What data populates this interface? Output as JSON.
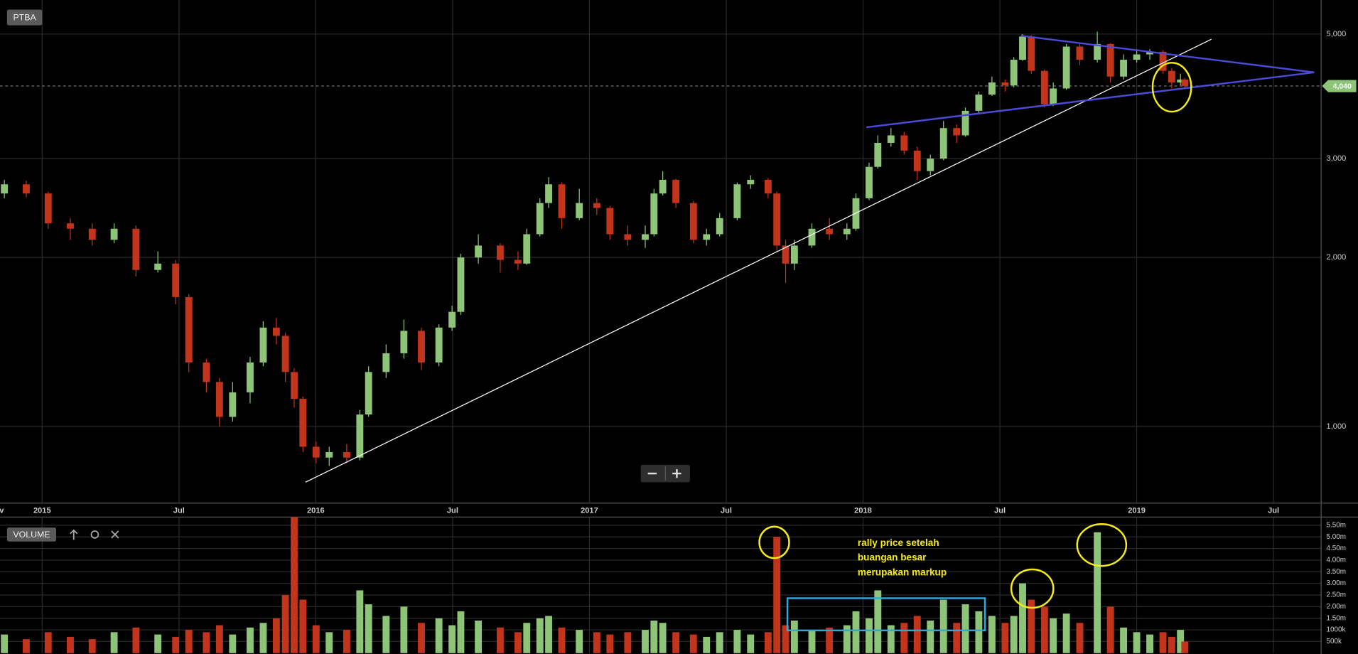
{
  "chart_data": [
    {
      "type": "candlestick",
      "title": "PTBA",
      "x": [
        2014.862,
        2014.942,
        2015.022,
        2015.103,
        2015.183,
        2015.263,
        2015.343,
        2015.423,
        2015.488,
        2015.536,
        2015.6,
        2015.648,
        2015.696,
        2015.76,
        2015.808,
        2015.856,
        2015.889,
        2015.921,
        2015.953,
        2016.001,
        2016.049,
        2016.113,
        2016.161,
        2016.193,
        2016.257,
        2016.322,
        2016.386,
        2016.45,
        2016.498,
        2016.53,
        2016.594,
        2016.674,
        2016.739,
        2016.771,
        2016.819,
        2016.851,
        2016.899,
        2016.963,
        2017.027,
        2017.075,
        2017.14,
        2017.204,
        2017.236,
        2017.268,
        2017.316,
        2017.38,
        2017.428,
        2017.476,
        2017.54,
        2017.589,
        2017.653,
        2017.685,
        2017.717,
        2017.749,
        2017.813,
        2017.877,
        2017.941,
        2017.974,
        2018.022,
        2018.054,
        2018.102,
        2018.15,
        2018.198,
        2018.246,
        2018.294,
        2018.342,
        2018.374,
        2018.423,
        2018.471,
        2018.519,
        2018.551,
        2018.583,
        2018.615,
        2018.663,
        2018.695,
        2018.743,
        2018.792,
        2018.856,
        2018.904,
        2018.952,
        2019.0,
        2019.048,
        2019.096,
        2019.128,
        2019.16,
        2019.176
      ],
      "open": [
        2600,
        2700,
        2600,
        2300,
        2250,
        2150,
        2250,
        1900,
        1950,
        1700,
        1300,
        1200,
        1040,
        1150,
        1300,
        1500,
        1450,
        1250,
        1120,
        920,
        880,
        900,
        880,
        1050,
        1250,
        1350,
        1480,
        1300,
        1500,
        1600,
        2000,
        2100,
        1980,
        1950,
        2200,
        2500,
        2700,
        2350,
        2500,
        2450,
        2200,
        2150,
        2200,
        2600,
        2750,
        2500,
        2150,
        2200,
        2350,
        2700,
        2750,
        2600,
        2100,
        1950,
        2100,
        2250,
        2200,
        2250,
        2550,
        2900,
        3200,
        3300,
        3100,
        2850,
        3000,
        3400,
        3300,
        3650,
        3900,
        4100,
        4050,
        4500,
        4950,
        4300,
        3750,
        4000,
        4750,
        4500,
        4800,
        4200,
        4500,
        4600,
        4650,
        4300,
        4100,
        4150
      ],
      "high": [
        2750,
        2740,
        2620,
        2350,
        2300,
        2300,
        2280,
        2050,
        1980,
        1720,
        1320,
        1220,
        1200,
        1330,
        1540,
        1560,
        1470,
        1270,
        1130,
        940,
        920,
        930,
        1070,
        1280,
        1400,
        1550,
        1500,
        1520,
        1640,
        2030,
        2200,
        2120,
        2050,
        2250,
        2550,
        2780,
        2720,
        2650,
        2550,
        2470,
        2280,
        2280,
        2650,
        2850,
        2760,
        2520,
        2250,
        2400,
        2720,
        2800,
        2770,
        2620,
        2150,
        2150,
        2300,
        2350,
        2300,
        2600,
        2950,
        3300,
        3400,
        3350,
        3150,
        3050,
        3500,
        3450,
        3700,
        3950,
        4200,
        4150,
        4550,
        5000,
        4980,
        4320,
        4100,
        4800,
        4800,
        5050,
        4820,
        4600,
        4700,
        4700,
        4680,
        4350,
        4250,
        4180
      ],
      "low": [
        2550,
        2560,
        2250,
        2150,
        2100,
        2120,
        1850,
        1880,
        1650,
        1250,
        1150,
        1000,
        1020,
        1100,
        1280,
        1400,
        1200,
        1080,
        900,
        860,
        850,
        860,
        870,
        1040,
        1220,
        1320,
        1260,
        1280,
        1480,
        1580,
        1950,
        1880,
        1900,
        1940,
        2180,
        2450,
        2250,
        2330,
        2380,
        2150,
        2100,
        2080,
        2180,
        2580,
        2450,
        2120,
        2100,
        2180,
        2330,
        2650,
        2550,
        2050,
        1800,
        1900,
        2080,
        2150,
        2150,
        2230,
        2530,
        2880,
        3150,
        3050,
        2750,
        2800,
        2980,
        3200,
        3280,
        3620,
        3880,
        3950,
        4020,
        4480,
        4250,
        3700,
        3720,
        3980,
        4400,
        4450,
        4100,
        4150,
        4450,
        4500,
        4250,
        4000,
        4050,
        4000
      ],
      "close": [
        2700,
        2600,
        2300,
        2250,
        2150,
        2250,
        1900,
        1950,
        1700,
        1300,
        1200,
        1040,
        1150,
        1300,
        1500,
        1450,
        1250,
        1120,
        920,
        880,
        900,
        880,
        1050,
        1250,
        1350,
        1480,
        1300,
        1500,
        1600,
        2000,
        2100,
        1980,
        1950,
        2200,
        2500,
        2700,
        2350,
        2500,
        2450,
        2200,
        2150,
        2200,
        2600,
        2750,
        2500,
        2150,
        2200,
        2350,
        2700,
        2750,
        2600,
        2100,
        1950,
        2100,
        2250,
        2200,
        2250,
        2550,
        2900,
        3200,
        3300,
        3100,
        2850,
        3000,
        3400,
        3300,
        3650,
        3900,
        4100,
        4050,
        4500,
        4950,
        4300,
        3750,
        4000,
        4750,
        4500,
        4800,
        4200,
        4500,
        4600,
        4650,
        4300,
        4100,
        4150,
        4040
      ],
      "up_color": "#8dc478",
      "down_color": "#c3341c",
      "xlim": [
        2014.846,
        2019.674
      ],
      "xticks": [
        {
          "value": 2014.833,
          "label": "Nov"
        },
        2015,
        {
          "value": 2015.5,
          "label": "Jul"
        },
        2016,
        {
          "value": 2016.5,
          "label": "Jul"
        },
        2017,
        {
          "value": 2017.5,
          "label": "Jul"
        },
        2018,
        {
          "value": 2018.5,
          "label": "Jul"
        },
        2019,
        {
          "value": 2019.5,
          "label": "Jul"
        }
      ],
      "ylim": [
        730,
        5750
      ],
      "log_scale": true,
      "grid": true,
      "yticks": [
        {
          "value": 1000,
          "label": "1,000"
        },
        {
          "value": 2000,
          "label": "2,000"
        },
        {
          "value": 3000,
          "label": "3,000"
        },
        {
          "value": 5000,
          "label": "5,000"
        }
      ],
      "last_price": {
        "value": 4040,
        "label": "4,040"
      }
    },
    {
      "type": "bar",
      "title": "VOLUME",
      "values": [
        800000,
        600000,
        900000,
        700000,
        600000,
        900000,
        1100000,
        800000,
        700000,
        1000000,
        900000,
        1200000,
        800000,
        1100000,
        1300000,
        1500000,
        2500000,
        5850000,
        2300000,
        1200000,
        900000,
        1000000,
        2700000,
        2100000,
        1600000,
        2000000,
        1300000,
        1500000,
        1200000,
        1800000,
        1400000,
        1100000,
        900000,
        1300000,
        1500000,
        1600000,
        1100000,
        1000000,
        900000,
        800000,
        900000,
        1000000,
        1400000,
        1300000,
        900000,
        800000,
        700000,
        900000,
        1000000,
        800000,
        900000,
        5000000,
        1200000,
        1400000,
        1000000,
        1100000,
        1200000,
        1800000,
        1500000,
        2700000,
        1200000,
        1300000,
        1600000,
        1400000,
        2300000,
        1300000,
        2100000,
        1800000,
        1600000,
        1300000,
        1600000,
        3000000,
        2300000,
        2000000,
        1500000,
        1700000,
        1300000,
        5200000,
        2000000,
        1100000,
        900000,
        800000,
        900000,
        700000,
        1000000,
        500000
      ],
      "ylim": [
        0,
        5850000
      ],
      "grid": true,
      "yticks": [
        {
          "value": 500000,
          "label": "500k"
        },
        {
          "value": 1000000,
          "label": "1000k"
        },
        {
          "value": 1500000,
          "label": "1.50m"
        },
        {
          "value": 2000000,
          "label": "2.00m"
        },
        {
          "value": 2500000,
          "label": "2.50m"
        },
        {
          "value": 3000000,
          "label": "3.00m"
        },
        {
          "value": 3500000,
          "label": "3.50m"
        },
        {
          "value": 4000000,
          "label": "4.00m"
        },
        {
          "value": 4500000,
          "label": "4.50m"
        },
        {
          "value": 5000000,
          "label": "5.00m"
        },
        {
          "value": 5500000,
          "label": "5.50m"
        }
      ],
      "annotation": [
        "rally price setelah",
        "buangan besar",
        "merupakan markup"
      ]
    }
  ]
}
